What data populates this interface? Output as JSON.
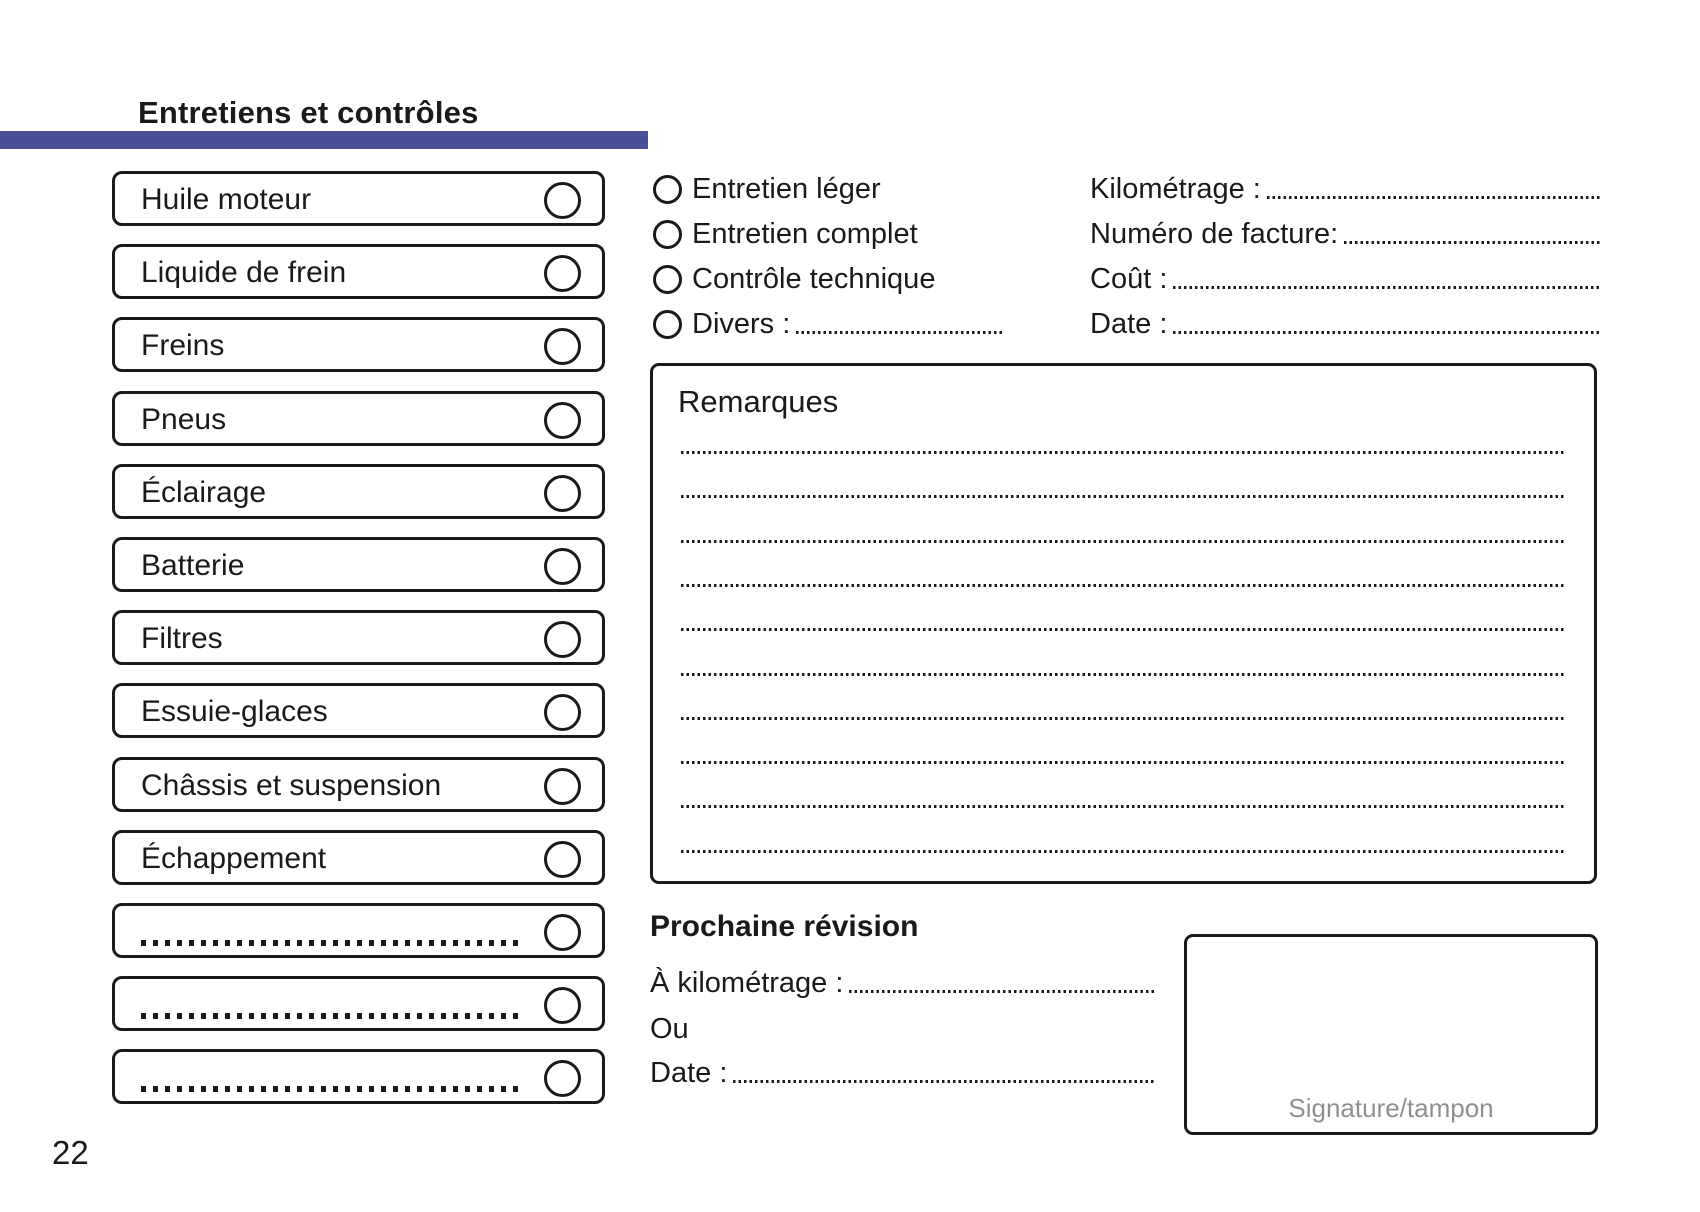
{
  "page": {
    "title": "Entretiens et contrôles",
    "page_number": "22",
    "accent_color": "#4a4f9a"
  },
  "checklist": {
    "items": [
      {
        "label": "Huile moteur",
        "blank": false
      },
      {
        "label": "Liquide de frein",
        "blank": false
      },
      {
        "label": "Freins",
        "blank": false
      },
      {
        "label": "Pneus",
        "blank": false
      },
      {
        "label": "Éclairage",
        "blank": false
      },
      {
        "label": "Batterie",
        "blank": false
      },
      {
        "label": "Filtres",
        "blank": false
      },
      {
        "label": "Essuie-glaces",
        "blank": false
      },
      {
        "label": "Châssis et suspension",
        "blank": false
      },
      {
        "label": "Échappement",
        "blank": false
      },
      {
        "label": "",
        "blank": true
      },
      {
        "label": "",
        "blank": true
      },
      {
        "label": "",
        "blank": true
      }
    ]
  },
  "service_type": {
    "options": [
      {
        "label": "Entretien léger",
        "dotted": false
      },
      {
        "label": "Entretien complet",
        "dotted": false
      },
      {
        "label": "Contrôle technique",
        "dotted": false
      },
      {
        "label": "Divers :",
        "dotted": true
      }
    ]
  },
  "invoice": {
    "fields": [
      {
        "label": "Kilométrage :"
      },
      {
        "label": "Numéro de facture:"
      },
      {
        "label": "Coût :"
      },
      {
        "label": "Date :"
      }
    ]
  },
  "remarks": {
    "title": "Remarques",
    "blank_line_count": 10
  },
  "next_service": {
    "title": "Prochaine révision",
    "rows": [
      {
        "label": "À kilométrage :",
        "dotted": true
      },
      {
        "label": "Ou",
        "dotted": false
      },
      {
        "label": "Date :",
        "dotted": true
      }
    ]
  },
  "signature": {
    "label": "Signature/tampon"
  }
}
